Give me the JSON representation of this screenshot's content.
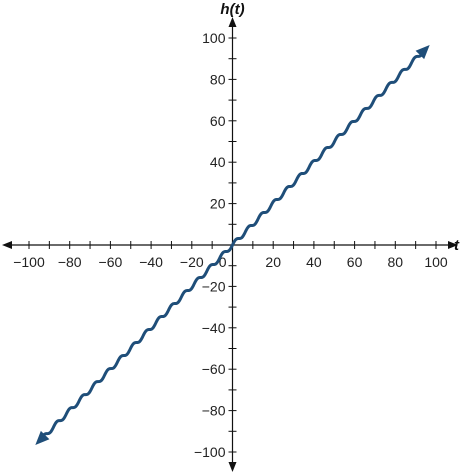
{
  "chart_data": {
    "type": "line",
    "title": "",
    "xlabel": "t",
    "ylabel": "h(t)",
    "xlim": [
      -100,
      100
    ],
    "ylim": [
      -100,
      100
    ],
    "x_tick_labels": [
      "−100",
      "−80",
      "−60",
      "−40",
      "−20",
      "0",
      "20",
      "40",
      "60",
      "80",
      "100"
    ],
    "y_tick_labels": [
      "100",
      "80",
      "60",
      "40",
      "20",
      "−20",
      "−40",
      "−60",
      "−80",
      "−100"
    ],
    "x_tick_values": [
      -100,
      -80,
      -60,
      -40,
      -20,
      0,
      20,
      40,
      60,
      80,
      100
    ],
    "y_tick_values": [
      100,
      80,
      60,
      40,
      20,
      -20,
      -40,
      -60,
      -80,
      -100
    ],
    "minor_tick_step": 10,
    "grid": false,
    "series": [
      {
        "function": "t + sin(t)",
        "x_range": [
          -94,
          94
        ],
        "arrows": "both",
        "color": "#1f4e79"
      }
    ]
  }
}
